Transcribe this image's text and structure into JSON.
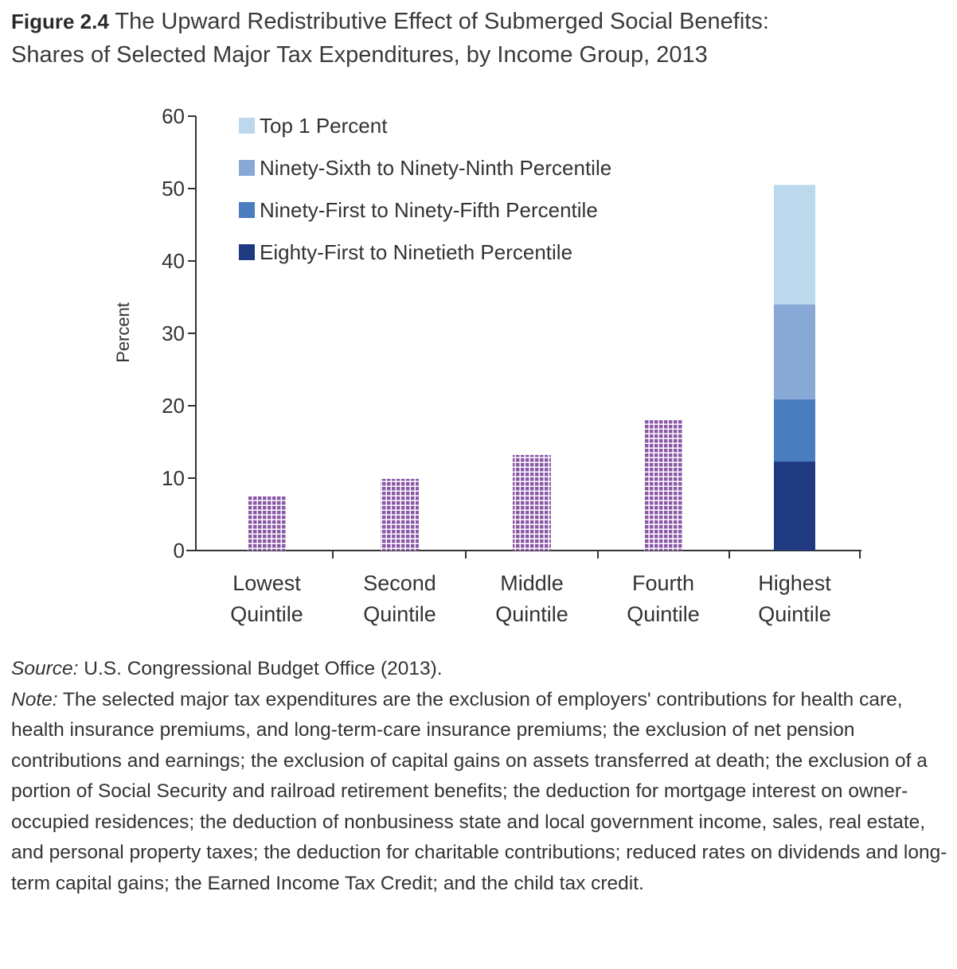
{
  "figure": {
    "label": "Figure 2.4",
    "title_line1": "The Upward Redistributive Effect of Submerged Social Benefits:",
    "title_line2": "Shares of Selected Major Tax Expenditures, by Income Group, 2013"
  },
  "chart_data": {
    "type": "bar",
    "stacked_last_category": true,
    "ylabel": "Percent",
    "xlabel": "",
    "ylim": [
      0,
      60
    ],
    "yticks": [
      0,
      10,
      20,
      30,
      40,
      50,
      60
    ],
    "grid": false,
    "legend_position": "top-left",
    "categories": [
      [
        "Lowest",
        "Quintile"
      ],
      [
        "Second",
        "Quintile"
      ],
      [
        "Middle",
        "Quintile"
      ],
      [
        "Fourth",
        "Quintile"
      ],
      [
        "Highest",
        "Quintile"
      ]
    ],
    "quintile_values": [
      7.5,
      9.9,
      13.2,
      18.0,
      null
    ],
    "quintile_color": "#8b58a8",
    "highest_quintile_stack": [
      {
        "name": "Eighty-First to Ninetieth Percentile",
        "value": 12.3,
        "color": "#1f3a80"
      },
      {
        "name": "Ninety-First to Ninety-Fifth Percentile",
        "value": 8.6,
        "color": "#4a7cc0"
      },
      {
        "name": "Ninety-Sixth to Ninety-Ninth Percentile",
        "value": 13.1,
        "color": "#88a8d6"
      },
      {
        "name": "Top 1 Percent",
        "value": 16.5,
        "color": "#bcd8ec"
      }
    ],
    "legend_order": [
      "Top 1 Percent",
      "Ninety-Sixth to Ninety-Ninth Percentile",
      "Ninety-First to Ninety-Fifth Percentile",
      "Eighty-First to Ninetieth Percentile"
    ]
  },
  "source": {
    "label": "Source:",
    "text": "U.S. Congressional Budget Office (2013)."
  },
  "note": {
    "label": "Note:",
    "text": "The selected major tax expenditures are the exclusion of employers' contributions for health care, health insurance premiums, and long-term-care insurance premiums; the exclusion of net pension contributions and earnings; the exclusion of capital gains on assets transferred at death; the exclusion of a portion of Social Security and railroad retirement benefits; the deduction for mortgage interest on owner-occupied residences; the deduction of nonbusiness state and local government income, sales, real estate, and personal property taxes; the deduction for charitable contributions; reduced rates on dividends and long-term capital gains; the Earned Income Tax Credit; and the child tax credit."
  }
}
